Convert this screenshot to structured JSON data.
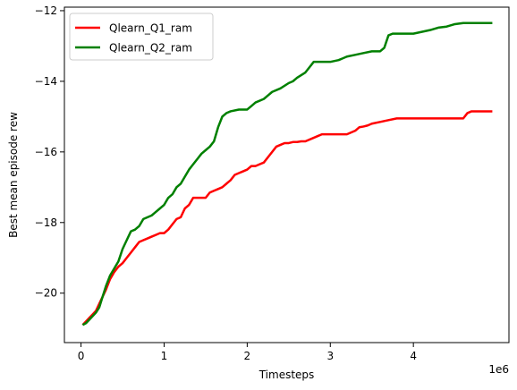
{
  "chart_data": {
    "type": "line",
    "title": "",
    "xlabel": "Timesteps",
    "ylabel": "Best mean episode rew",
    "x_offset_label": "1e6",
    "xlim": [
      -200000,
      5150000
    ],
    "ylim": [
      -21.4,
      -11.9
    ],
    "x_ticks": [
      0,
      1000000,
      2000000,
      3000000,
      4000000
    ],
    "x_tick_labels": [
      "0",
      "1",
      "2",
      "3",
      "4"
    ],
    "y_ticks": [
      -20,
      -18,
      -16,
      -14,
      -12
    ],
    "y_tick_labels": [
      "−20",
      "−18",
      "−16",
      "−14",
      "−12"
    ],
    "grid": false,
    "legend_position": "top-left",
    "series": [
      {
        "name": "Qlearn_Q1_ram",
        "color": "#ff0000",
        "x": [
          20000,
          60000,
          100000,
          140000,
          180000,
          220000,
          260000,
          300000,
          350000,
          400000,
          450000,
          500000,
          550000,
          600000,
          650000,
          700000,
          750000,
          800000,
          850000,
          900000,
          950000,
          1000000,
          1050000,
          1100000,
          1150000,
          1200000,
          1250000,
          1300000,
          1350000,
          1400000,
          1450000,
          1500000,
          1550000,
          1600000,
          1650000,
          1700000,
          1750000,
          1800000,
          1850000,
          1900000,
          1950000,
          2000000,
          2050000,
          2100000,
          2150000,
          2200000,
          2250000,
          2300000,
          2350000,
          2400000,
          2450000,
          2500000,
          2550000,
          2600000,
          2650000,
          2700000,
          2800000,
          2850000,
          2900000,
          3000000,
          3100000,
          3200000,
          3300000,
          3350000,
          3400000,
          3450000,
          3500000,
          3600000,
          3700000,
          3800000,
          3900000,
          4000000,
          4200000,
          4400000,
          4600000,
          4650000,
          4700000,
          4800000,
          4950000
        ],
        "y": [
          -20.9,
          -20.8,
          -20.7,
          -20.6,
          -20.5,
          -20.3,
          -20.1,
          -19.9,
          -19.6,
          -19.4,
          -19.25,
          -19.15,
          -19.0,
          -18.85,
          -18.7,
          -18.55,
          -18.5,
          -18.45,
          -18.4,
          -18.35,
          -18.3,
          -18.3,
          -18.2,
          -18.05,
          -17.9,
          -17.85,
          -17.6,
          -17.5,
          -17.3,
          -17.3,
          -17.3,
          -17.3,
          -17.15,
          -17.1,
          -17.05,
          -17.0,
          -16.9,
          -16.8,
          -16.65,
          -16.6,
          -16.55,
          -16.5,
          -16.4,
          -16.4,
          -16.35,
          -16.3,
          -16.15,
          -16.0,
          -15.85,
          -15.8,
          -15.75,
          -15.75,
          -15.72,
          -15.72,
          -15.7,
          -15.7,
          -15.6,
          -15.55,
          -15.5,
          -15.5,
          -15.5,
          -15.5,
          -15.4,
          -15.3,
          -15.28,
          -15.25,
          -15.2,
          -15.15,
          -15.1,
          -15.05,
          -15.05,
          -15.05,
          -15.05,
          -15.05,
          -15.05,
          -14.9,
          -14.85,
          -14.85,
          -14.85
        ]
      },
      {
        "name": "Qlearn_Q2_ram",
        "color": "#008000",
        "x": [
          20000,
          60000,
          100000,
          140000,
          180000,
          220000,
          260000,
          300000,
          350000,
          400000,
          450000,
          500000,
          550000,
          600000,
          650000,
          700000,
          750000,
          800000,
          850000,
          900000,
          950000,
          1000000,
          1050000,
          1100000,
          1150000,
          1200000,
          1250000,
          1300000,
          1350000,
          1400000,
          1450000,
          1500000,
          1550000,
          1600000,
          1650000,
          1700000,
          1750000,
          1800000,
          1900000,
          2000000,
          2050000,
          2100000,
          2200000,
          2250000,
          2300000,
          2400000,
          2500000,
          2550000,
          2600000,
          2700000,
          2750000,
          2800000,
          2850000,
          3000000,
          3100000,
          3200000,
          3300000,
          3400000,
          3500000,
          3600000,
          3650000,
          3700000,
          3750000,
          3800000,
          3900000,
          4000000,
          4100000,
          4200000,
          4300000,
          4400000,
          4500000,
          4600000,
          4700000,
          4800000,
          4950000
        ],
        "y": [
          -20.9,
          -20.85,
          -20.75,
          -20.65,
          -20.55,
          -20.4,
          -20.1,
          -19.8,
          -19.5,
          -19.3,
          -19.1,
          -18.75,
          -18.5,
          -18.25,
          -18.2,
          -18.1,
          -17.9,
          -17.85,
          -17.8,
          -17.7,
          -17.6,
          -17.5,
          -17.3,
          -17.2,
          -17.0,
          -16.9,
          -16.7,
          -16.5,
          -16.35,
          -16.2,
          -16.05,
          -15.95,
          -15.85,
          -15.7,
          -15.3,
          -15.0,
          -14.9,
          -14.85,
          -14.8,
          -14.8,
          -14.7,
          -14.6,
          -14.5,
          -14.4,
          -14.3,
          -14.2,
          -14.05,
          -14.0,
          -13.9,
          -13.75,
          -13.6,
          -13.45,
          -13.45,
          -13.45,
          -13.4,
          -13.3,
          -13.25,
          -13.2,
          -13.15,
          -13.15,
          -13.05,
          -12.7,
          -12.65,
          -12.65,
          -12.65,
          -12.65,
          -12.6,
          -12.55,
          -12.48,
          -12.45,
          -12.38,
          -12.35,
          -12.35,
          -12.35,
          -12.35
        ]
      }
    ]
  }
}
